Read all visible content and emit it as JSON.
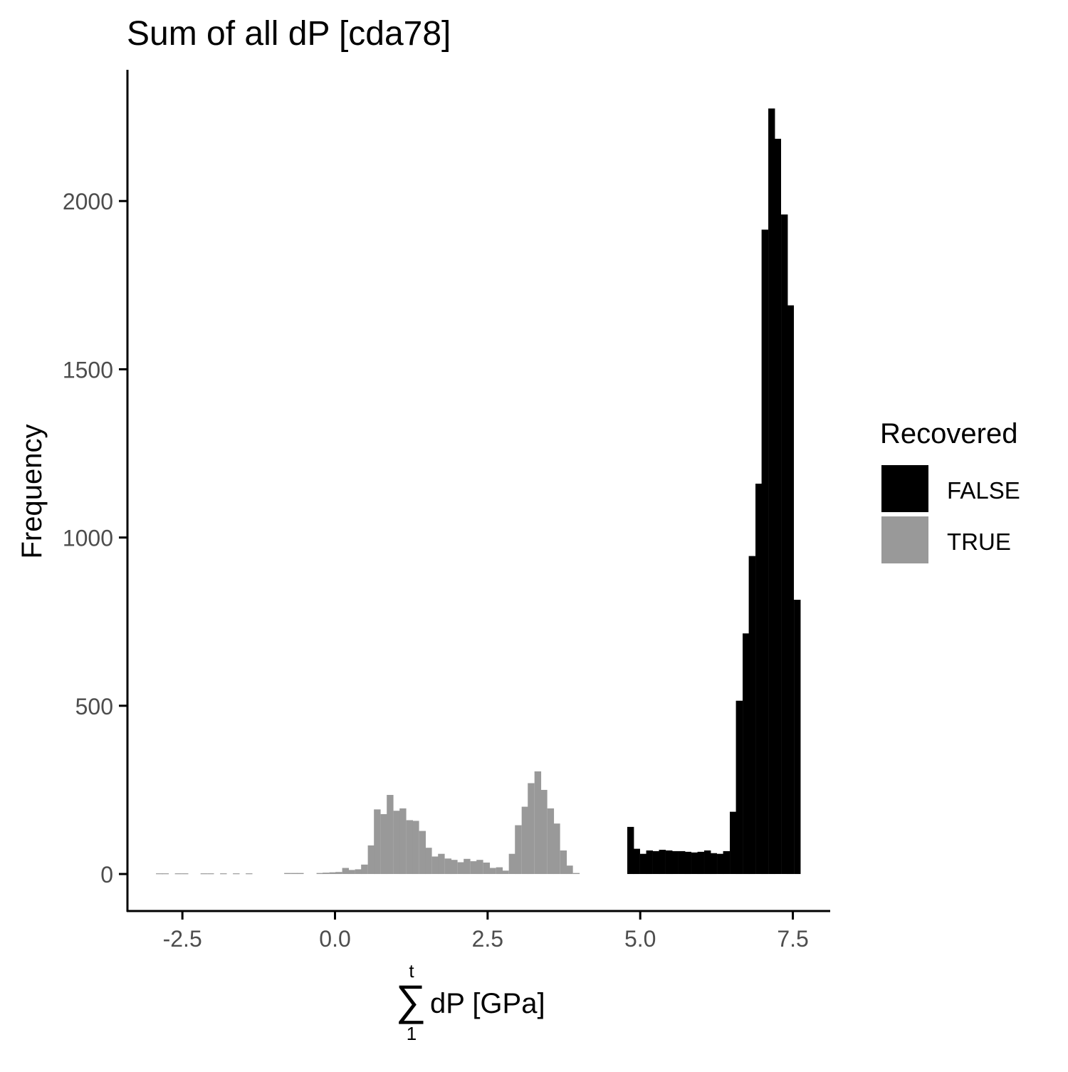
{
  "chart_data": {
    "type": "bar",
    "title": "Sum of all dP [cda78]",
    "xlabel": {
      "sum_upper": "t",
      "sum_lower": "1",
      "text": "dP [GPa]"
    },
    "ylabel": "Frequency",
    "xlim": [
      -3.4,
      8.1
    ],
    "ylim": [
      -110,
      2390
    ],
    "grid": false,
    "x_ticks": [
      {
        "value": -2.5,
        "label": "-2.5"
      },
      {
        "value": 0.0,
        "label": "0.0"
      },
      {
        "value": 2.5,
        "label": "2.5"
      },
      {
        "value": 5.0,
        "label": "5.0"
      },
      {
        "value": 7.5,
        "label": "7.5"
      }
    ],
    "y_ticks": [
      {
        "value": 0,
        "label": "0"
      },
      {
        "value": 500,
        "label": "500"
      },
      {
        "value": 1000,
        "label": "1000"
      },
      {
        "value": 1500,
        "label": "1500"
      },
      {
        "value": 2000,
        "label": "2000"
      }
    ],
    "legend": {
      "title": "Recovered",
      "position": "right",
      "entries": [
        {
          "label": "FALSE",
          "color": "#000000"
        },
        {
          "label": "TRUE",
          "color": "#999999"
        }
      ]
    },
    "bin_width": 0.105,
    "series": [
      {
        "name": "FALSE",
        "color": "#000000",
        "bars": [
          {
            "x": 4.84,
            "y": 140
          },
          {
            "x": 4.94,
            "y": 75
          },
          {
            "x": 5.05,
            "y": 60
          },
          {
            "x": 5.15,
            "y": 70
          },
          {
            "x": 5.26,
            "y": 68
          },
          {
            "x": 5.36,
            "y": 72
          },
          {
            "x": 5.47,
            "y": 70
          },
          {
            "x": 5.57,
            "y": 68
          },
          {
            "x": 5.68,
            "y": 68
          },
          {
            "x": 5.78,
            "y": 66
          },
          {
            "x": 5.89,
            "y": 64
          },
          {
            "x": 5.99,
            "y": 66
          },
          {
            "x": 6.1,
            "y": 70
          },
          {
            "x": 6.2,
            "y": 62
          },
          {
            "x": 6.31,
            "y": 60
          },
          {
            "x": 6.41,
            "y": 68
          },
          {
            "x": 6.52,
            "y": 185
          },
          {
            "x": 6.62,
            "y": 515
          },
          {
            "x": 6.73,
            "y": 715
          },
          {
            "x": 6.83,
            "y": 945
          },
          {
            "x": 6.94,
            "y": 1160
          },
          {
            "x": 7.04,
            "y": 1915
          },
          {
            "x": 7.15,
            "y": 2275
          },
          {
            "x": 7.25,
            "y": 2185
          },
          {
            "x": 7.36,
            "y": 1960
          },
          {
            "x": 7.46,
            "y": 1690
          },
          {
            "x": 7.57,
            "y": 815
          }
        ]
      },
      {
        "name": "TRUE",
        "color": "#999999",
        "bars": [
          {
            "x": -2.88,
            "y": 2
          },
          {
            "x": -2.78,
            "y": 2
          },
          {
            "x": -2.57,
            "y": 2
          },
          {
            "x": -2.46,
            "y": 2
          },
          {
            "x": -2.15,
            "y": 2
          },
          {
            "x": -2.04,
            "y": 2
          },
          {
            "x": -1.83,
            "y": 2
          },
          {
            "x": -1.62,
            "y": 2
          },
          {
            "x": -1.41,
            "y": 2
          },
          {
            "x": -0.78,
            "y": 3
          },
          {
            "x": -0.67,
            "y": 3
          },
          {
            "x": -0.57,
            "y": 3
          },
          {
            "x": -0.25,
            "y": 3
          },
          {
            "x": -0.15,
            "y": 4
          },
          {
            "x": -0.04,
            "y": 5
          },
          {
            "x": 0.06,
            "y": 6
          },
          {
            "x": 0.17,
            "y": 18
          },
          {
            "x": 0.27,
            "y": 12
          },
          {
            "x": 0.38,
            "y": 14
          },
          {
            "x": 0.48,
            "y": 28
          },
          {
            "x": 0.59,
            "y": 85
          },
          {
            "x": 0.69,
            "y": 192
          },
          {
            "x": 0.8,
            "y": 178
          },
          {
            "x": 0.9,
            "y": 235
          },
          {
            "x": 1.01,
            "y": 188
          },
          {
            "x": 1.11,
            "y": 195
          },
          {
            "x": 1.22,
            "y": 160
          },
          {
            "x": 1.32,
            "y": 158
          },
          {
            "x": 1.43,
            "y": 128
          },
          {
            "x": 1.53,
            "y": 78
          },
          {
            "x": 1.64,
            "y": 52
          },
          {
            "x": 1.74,
            "y": 60
          },
          {
            "x": 1.85,
            "y": 46
          },
          {
            "x": 1.95,
            "y": 42
          },
          {
            "x": 2.06,
            "y": 35
          },
          {
            "x": 2.16,
            "y": 45
          },
          {
            "x": 2.27,
            "y": 38
          },
          {
            "x": 2.37,
            "y": 42
          },
          {
            "x": 2.48,
            "y": 34
          },
          {
            "x": 2.58,
            "y": 18
          },
          {
            "x": 2.69,
            "y": 20
          },
          {
            "x": 2.79,
            "y": 10
          },
          {
            "x": 2.9,
            "y": 60
          },
          {
            "x": 3.0,
            "y": 145
          },
          {
            "x": 3.11,
            "y": 200
          },
          {
            "x": 3.21,
            "y": 270
          },
          {
            "x": 3.32,
            "y": 305
          },
          {
            "x": 3.42,
            "y": 250
          },
          {
            "x": 3.53,
            "y": 195
          },
          {
            "x": 3.63,
            "y": 150
          },
          {
            "x": 3.74,
            "y": 70
          },
          {
            "x": 3.84,
            "y": 25
          },
          {
            "x": 3.95,
            "y": 3
          }
        ]
      }
    ]
  }
}
